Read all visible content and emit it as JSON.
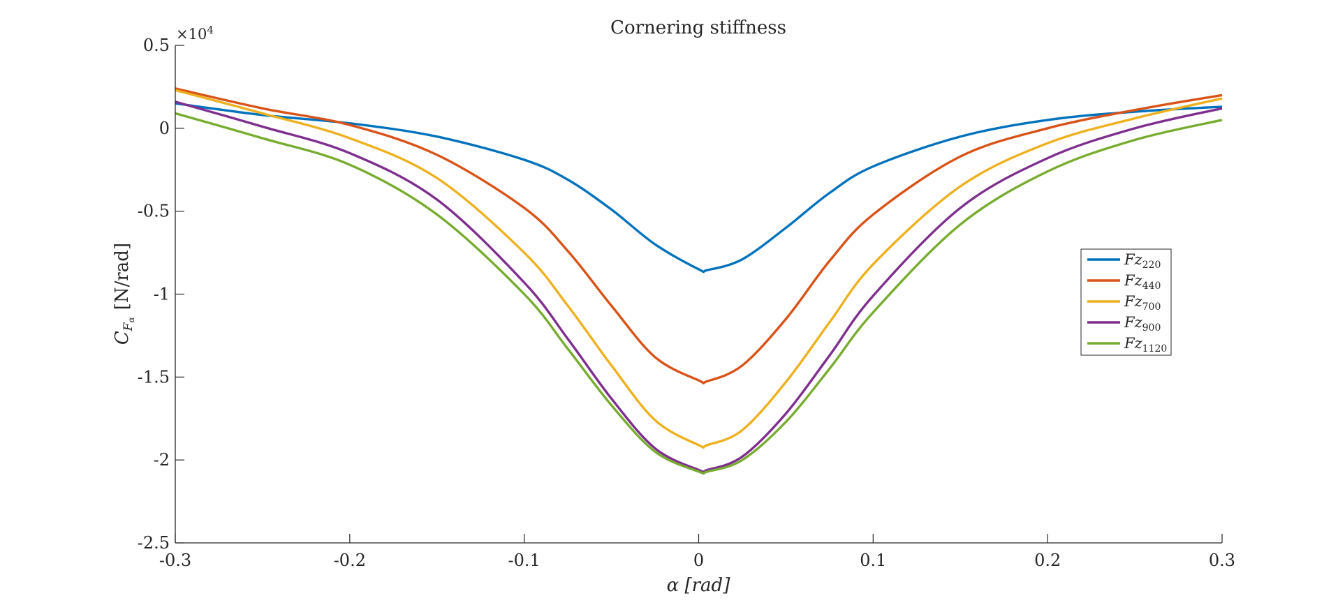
{
  "chart_data": {
    "type": "line",
    "title": "Cornering stiffness",
    "xlabel": "α [rad]",
    "ylabel": {
      "main": "C",
      "sub": "F",
      "subsub": "α",
      "unit": "[N/rad]"
    },
    "y_exponent": {
      "prefix": "×10",
      "power": "4"
    },
    "xlim": [
      -0.3,
      0.3
    ],
    "ylim": [
      -2.5,
      0.5
    ],
    "xticks": [
      -0.3,
      -0.2,
      -0.1,
      0,
      0.1,
      0.2,
      0.3
    ],
    "xtick_labels": [
      "-0.3",
      "-0.2",
      "-0.1",
      "0",
      "0.1",
      "0.2",
      "0.3"
    ],
    "yticks": [
      0.5,
      0,
      -0.5,
      -1,
      -1.5,
      -2,
      -2.5
    ],
    "ytick_labels": [
      "0.5",
      "0",
      "-0.5",
      "-1",
      "-1.5",
      "-2",
      "-2.5"
    ],
    "grid": false,
    "legend_position": "right",
    "series": [
      {
        "name": "Fz220",
        "name_base": "Fz",
        "name_sub": "220",
        "color": "#0072BD",
        "x": [
          -0.3,
          -0.25,
          -0.2,
          -0.15,
          -0.1,
          -0.075,
          -0.05,
          -0.025,
          0,
          0.005,
          0.025,
          0.05,
          0.075,
          0.1,
          0.15,
          0.2,
          0.25,
          0.3
        ],
        "y": [
          0.15,
          0.08,
          0.03,
          -0.05,
          -0.19,
          -0.31,
          -0.49,
          -0.7,
          -0.85,
          -0.855,
          -0.79,
          -0.6,
          -0.39,
          -0.23,
          -0.05,
          0.05,
          0.1,
          0.13
        ]
      },
      {
        "name": "Fz440",
        "name_base": "Fz",
        "name_sub": "440",
        "color": "#D95319",
        "x": [
          -0.3,
          -0.25,
          -0.2,
          -0.15,
          -0.1,
          -0.075,
          -0.05,
          -0.025,
          0,
          0.005,
          0.025,
          0.05,
          0.075,
          0.1,
          0.15,
          0.2,
          0.25,
          0.3
        ],
        "y": [
          0.24,
          0.12,
          0.02,
          -0.16,
          -0.48,
          -0.74,
          -1.07,
          -1.38,
          -1.52,
          -1.525,
          -1.43,
          -1.15,
          -0.8,
          -0.52,
          -0.17,
          0.0,
          0.11,
          0.2
        ]
      },
      {
        "name": "Fz700",
        "name_base": "Fz",
        "name_sub": "700",
        "color": "#EDB120",
        "x": [
          -0.3,
          -0.25,
          -0.2,
          -0.15,
          -0.1,
          -0.075,
          -0.05,
          -0.025,
          0,
          0.005,
          0.025,
          0.05,
          0.075,
          0.1,
          0.15,
          0.2,
          0.25,
          0.3
        ],
        "y": [
          0.23,
          0.09,
          -0.06,
          -0.3,
          -0.75,
          -1.07,
          -1.43,
          -1.76,
          -1.91,
          -1.91,
          -1.82,
          -1.53,
          -1.17,
          -0.82,
          -0.35,
          -0.09,
          0.06,
          0.18
        ]
      },
      {
        "name": "Fz900",
        "name_base": "Fz",
        "name_sub": "900",
        "color": "#7E2F8E",
        "x": [
          -0.3,
          -0.25,
          -0.2,
          -0.15,
          -0.1,
          -0.075,
          -0.05,
          -0.025,
          0,
          0.005,
          0.025,
          0.05,
          0.075,
          0.1,
          0.15,
          0.2,
          0.25,
          0.3
        ],
        "y": [
          0.16,
          0.01,
          -0.15,
          -0.43,
          -0.93,
          -1.27,
          -1.63,
          -1.93,
          -2.06,
          -2.06,
          -1.98,
          -1.72,
          -1.37,
          -1.01,
          -0.48,
          -0.18,
          0.0,
          0.12
        ]
      },
      {
        "name": "Fz1120",
        "name_base": "Fz",
        "name_sub": "1120",
        "color": "#77AC30",
        "x": [
          -0.3,
          -0.25,
          -0.2,
          -0.15,
          -0.1,
          -0.075,
          -0.05,
          -0.025,
          0,
          0.005,
          0.025,
          0.05,
          0.075,
          0.1,
          0.15,
          0.2,
          0.25,
          0.3
        ],
        "y": [
          0.09,
          -0.06,
          -0.22,
          -0.52,
          -1.0,
          -1.33,
          -1.67,
          -1.95,
          -2.07,
          -2.07,
          -2.0,
          -1.77,
          -1.45,
          -1.11,
          -0.58,
          -0.26,
          -0.07,
          0.05
        ]
      }
    ]
  }
}
